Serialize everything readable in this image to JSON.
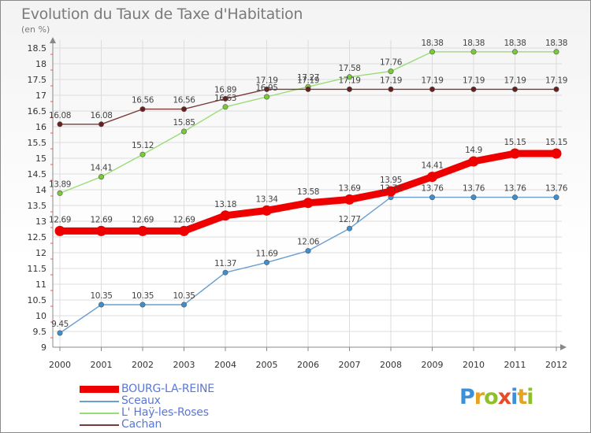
{
  "title": "Evolution du Taux de Taxe d'Habitation",
  "unit": "(en %)",
  "logo": {
    "letters": [
      "P",
      "r",
      "o",
      "x",
      "i",
      "t",
      "i"
    ],
    "colors": [
      "#3d8fd8",
      "#e8a31e",
      "#8fbf2a",
      "#e64b2a",
      "#3d8fd8",
      "#e8a31e",
      "#8fbf2a"
    ]
  },
  "chart_data": {
    "type": "line",
    "x": [
      2000,
      2001,
      2002,
      2003,
      2004,
      2005,
      2006,
      2007,
      2008,
      2009,
      2010,
      2011,
      2012
    ],
    "ylim": [
      9,
      18.5
    ],
    "yticks": [
      "9",
      "9.5",
      "10",
      "10.5",
      "11",
      "11.5",
      "12",
      "12.5",
      "13",
      "13.5",
      "14",
      "14.5",
      "15",
      "15.5",
      "16",
      "16.5",
      "17",
      "17.5",
      "18",
      "18.5"
    ],
    "grid": true,
    "legend_position": "bottom-left",
    "series": [
      {
        "name": "BOURG-LA-REINE",
        "color": "#ee0000",
        "weight": "bold",
        "values": [
          12.69,
          12.69,
          12.69,
          12.69,
          13.18,
          13.34,
          13.58,
          13.69,
          13.95,
          14.41,
          14.9,
          15.15,
          15.15
        ],
        "labels": [
          "12.69",
          "12.69",
          "12.69",
          "12.69",
          "13.18",
          "13.34",
          "13.58",
          "13.69",
          "13.95",
          "14.41",
          "14.9",
          "15.15",
          "15.15"
        ]
      },
      {
        "name": "Sceaux",
        "color": "#6a9fcf",
        "marker": "#3f8fcf",
        "weight": "thin",
        "values": [
          9.45,
          10.35,
          10.35,
          10.35,
          11.37,
          11.69,
          12.06,
          12.77,
          13.76,
          13.76,
          13.76,
          13.76,
          13.76
        ],
        "labels": [
          "9.45",
          "10.35",
          "10.35",
          "10.35",
          "11.37",
          "11.69",
          "12.06",
          "12.77",
          "13.76",
          "13.76",
          "13.76",
          "13.76",
          "13.76"
        ]
      },
      {
        "name": "L' Haÿ-les-Roses",
        "color": "#99dd77",
        "marker": "#77cc33",
        "weight": "thin",
        "values": [
          13.89,
          14.41,
          15.12,
          15.85,
          16.63,
          16.95,
          17.27,
          17.58,
          17.76,
          18.38,
          18.38,
          18.38,
          18.38
        ],
        "labels": [
          "13.89",
          "14.41",
          "15.12",
          "15.85",
          "16.63",
          "16.95",
          "17.27",
          "17.58",
          "17.76",
          "18.38",
          "18.38",
          "18.38",
          "18.38"
        ]
      },
      {
        "name": "Cachan",
        "color": "#7a3a3a",
        "marker": "#6a1e1e",
        "weight": "thin",
        "values": [
          16.08,
          16.08,
          16.56,
          16.56,
          16.89,
          17.19,
          17.19,
          17.19,
          17.19,
          17.19,
          17.19,
          17.19,
          17.19
        ],
        "labels": [
          "16.08",
          "16.08",
          "16.56",
          "16.56",
          "16.89",
          "17.19",
          "17.19",
          "17.19",
          "17.19",
          "17.19",
          "17.19",
          "17.19",
          "17.19"
        ]
      }
    ]
  }
}
